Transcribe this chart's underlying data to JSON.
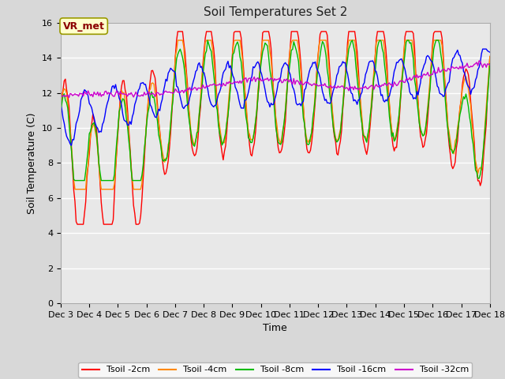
{
  "title": "Soil Temperatures Set 2",
  "xlabel": "Time",
  "ylabel": "Soil Temperature (C)",
  "ylim": [
    0,
    16
  ],
  "yticks": [
    0,
    2,
    4,
    6,
    8,
    10,
    12,
    14,
    16
  ],
  "fig_bg_color": "#d8d8d8",
  "plot_bg_color": "#e8e8e8",
  "annotation_text": "VR_met",
  "annotation_color": "#8b0000",
  "annotation_bg": "#ffffcc",
  "series_colors": [
    "#ff0000",
    "#ff8800",
    "#00bb00",
    "#0000ff",
    "#cc00cc"
  ],
  "series_labels": [
    "Tsoil -2cm",
    "Tsoil -4cm",
    "Tsoil -8cm",
    "Tsoil -16cm",
    "Tsoil -32cm"
  ],
  "n_points": 360,
  "xtick_labels": [
    "Dec 3",
    "Dec 4",
    "Dec 5",
    "Dec 6",
    "Dec 7",
    "Dec 8",
    "Dec 9",
    "Dec 10",
    "Dec 11",
    "Dec 12",
    "Dec 13",
    "Dec 14",
    "Dec 15",
    "Dec 16",
    "Dec 17",
    "Dec 18"
  ]
}
